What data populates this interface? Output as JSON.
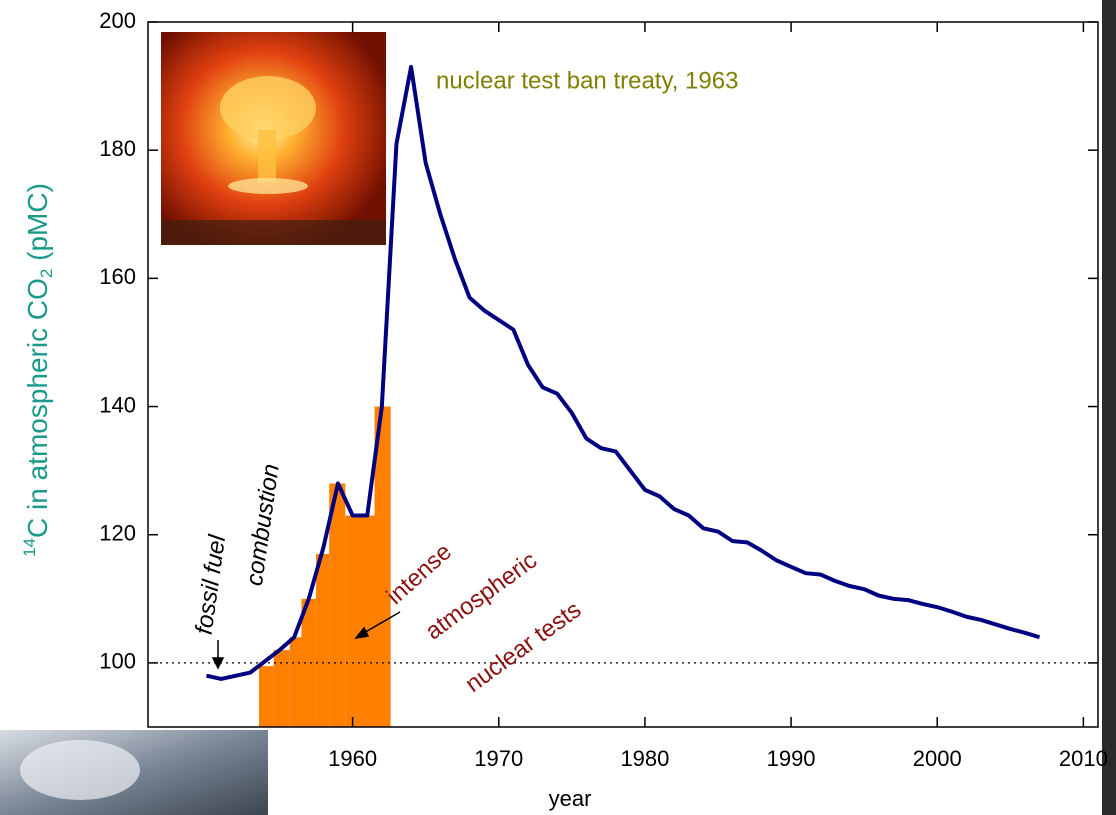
{
  "chart_data": [
    {
      "type": "histogram",
      "color": "#ff8000",
      "bins": [
        1953.6,
        1954.6,
        1955.7,
        1956.5,
        1957.5,
        1958.4,
        1959.5,
        1961.5,
        1962.6
      ],
      "values": [
        99.5,
        102,
        104,
        110,
        117,
        128,
        123,
        140
      ],
      "xlim": [
        1946,
        2011
      ],
      "ylim": [
        90,
        200
      ]
    },
    {
      "type": "line",
      "color": "#000080",
      "xlabel": "year",
      "ylabel": {
        "sup": "14",
        "main": "C in atmospheric CO",
        "sub": "2",
        "tail": " (pMC)"
      },
      "x": [
        1950,
        1951,
        1953,
        1955,
        1956,
        1957,
        1958,
        1959,
        1960,
        1961,
        1962,
        1963,
        1964,
        1965,
        1966,
        1967,
        1968,
        1969,
        1971,
        1972,
        1973,
        1974,
        1975,
        1976,
        1977,
        1978,
        1979,
        1980,
        1981,
        1982,
        1983,
        1984,
        1985,
        1986,
        1987,
        1988,
        1989,
        1990,
        1991,
        1992,
        1993,
        1994,
        1995,
        1996,
        1997,
        1998,
        1999,
        2000,
        2001,
        2002,
        2003,
        2004,
        2005,
        2006,
        2007
      ],
      "values": [
        98,
        97.5,
        98.5,
        102,
        104,
        110,
        118,
        128,
        123,
        123,
        140,
        181,
        193,
        178,
        170,
        163,
        157,
        155,
        152,
        146.5,
        143,
        142,
        139,
        135,
        133.5,
        133,
        130,
        127,
        126,
        124,
        123,
        121,
        120.5,
        119,
        118.8,
        117.5,
        116,
        115,
        114,
        113.8,
        112.8,
        112,
        111.5,
        110.5,
        110,
        109.8,
        109.2,
        108.7,
        108,
        107.2,
        106.7,
        106,
        105.3,
        104.7,
        104
      ],
      "xlim": [
        1946,
        2011
      ],
      "ylim": [
        90,
        200
      ],
      "xticks": [
        1960,
        1970,
        1980,
        1990,
        2000,
        2010
      ],
      "yticks": [
        100,
        120,
        140,
        160,
        180,
        200
      ],
      "reference_line": 100,
      "annotations": {
        "treaty": "nuclear test ban treaty, 1963",
        "fossil1": "fossil fuel",
        "fossil2": "combustion",
        "tests1": "intense",
        "tests2": "atmospheric",
        "tests3": "nuclear tests"
      }
    }
  ]
}
